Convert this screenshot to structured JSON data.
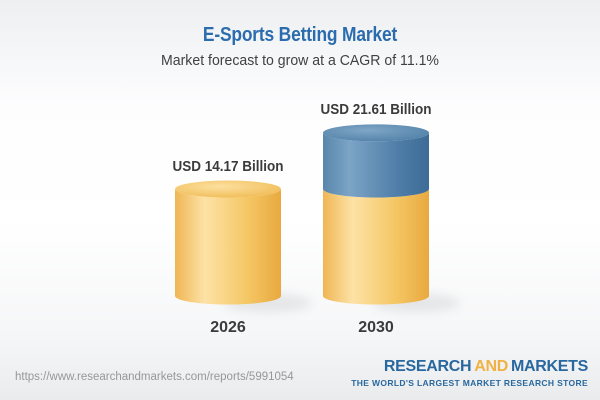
{
  "header": {
    "title": "E-Sports Betting Market",
    "subtitle": "Market forecast to grow at a CAGR of 11.1%"
  },
  "chart_data": {
    "type": "bar",
    "style": "3d-cylinder",
    "title": "E-Sports Betting Market",
    "subtitle": "Market forecast to grow at a CAGR of 11.1%",
    "categories": [
      "2026",
      "2030"
    ],
    "values": [
      14.17,
      21.61
    ],
    "value_labels": [
      "USD 14.17 Billion",
      "USD 21.61 Billion"
    ],
    "unit": "USD Billion",
    "cagr_pct": 11.1,
    "segments": [
      [
        {
          "color": "gold",
          "value": 14.17
        }
      ],
      [
        {
          "color": "gold",
          "value": 14.17
        },
        {
          "color": "blue",
          "value": 7.44
        }
      ]
    ],
    "colors": {
      "gold": "#f5c466",
      "blue": "#4e80a9"
    },
    "grid": false,
    "legend": false
  },
  "footer": {
    "url": "https://www.researchandmarkets.com/reports/5991054",
    "logo": {
      "research": "RESEARCH",
      "and": "AND",
      "markets": "MARKETS",
      "tagline": "THE WORLD'S LARGEST MARKET RESEARCH STORE"
    }
  },
  "colors": {
    "title_blue": "#2b6cae",
    "brand_blue": "#28689f",
    "brand_gold": "#f0b243",
    "text_dark": "#3b3b3b",
    "url_gray": "#979797"
  }
}
